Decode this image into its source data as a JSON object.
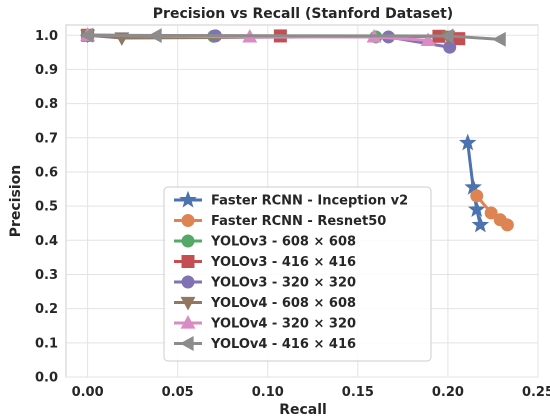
{
  "chart_data": {
    "type": "line",
    "title": "Precision vs Recall (Stanford Dataset)",
    "xlabel": "Recall",
    "ylabel": "Precision",
    "xlim": [
      -0.012,
      0.25
    ],
    "ylim": [
      0.0,
      1.03
    ],
    "xticks": [
      "0.00",
      "0.05",
      "0.10",
      "0.15",
      "0.20",
      "0.25"
    ],
    "yticks": [
      "0.0",
      "0.1",
      "0.2",
      "0.3",
      "0.4",
      "0.5",
      "0.6",
      "0.7",
      "0.8",
      "0.9",
      "1.0"
    ],
    "grid": true,
    "legend_position": "lower-center",
    "series": [
      {
        "name": "Faster RCNN - Inception v2",
        "color": "#4c72b0",
        "marker": "star",
        "x": [
          0.211,
          0.214,
          0.216,
          0.218
        ],
        "y": [
          0.685,
          0.555,
          0.49,
          0.445
        ]
      },
      {
        "name": "Faster RCNN - Resnet50",
        "color": "#dd8452",
        "marker": "circle",
        "x": [
          0.216,
          0.224,
          0.229,
          0.233
        ],
        "y": [
          0.53,
          0.48,
          0.46,
          0.445
        ]
      },
      {
        "name": "YOLOv3 - 608 × 608",
        "color": "#55a868",
        "marker": "circle",
        "x": [
          0.0,
          0.07,
          0.16
        ],
        "y": [
          1.0,
          0.997,
          0.995
        ]
      },
      {
        "name": "YOLOv3 - 416 × 416",
        "color": "#c44e52",
        "marker": "square",
        "x": [
          0.0,
          0.107,
          0.195,
          0.206
        ],
        "y": [
          1.0,
          0.998,
          0.997,
          0.99
        ]
      },
      {
        "name": "YOLOv3 - 320 × 320",
        "color": "#8172b3",
        "marker": "circle",
        "x": [
          0.0,
          0.071,
          0.167,
          0.201
        ],
        "y": [
          1.0,
          0.998,
          0.995,
          0.965
        ]
      },
      {
        "name": "YOLOv4 - 608 × 608",
        "color": "#937860",
        "marker": "triangle-down",
        "x": [
          0.0,
          0.019,
          0.2
        ],
        "y": [
          1.0,
          0.992,
          0.997
        ]
      },
      {
        "name": "YOLOv4 - 320 × 320",
        "color": "#da8bc3",
        "marker": "triangle-up",
        "x": [
          0.0,
          0.09,
          0.159,
          0.189
        ],
        "y": [
          1.0,
          0.995,
          0.995,
          0.985
        ]
      },
      {
        "name": "YOLOv4 - 416 × 416",
        "color": "#8c8c8c",
        "marker": "triangle-left",
        "x": [
          0.0,
          0.038,
          0.2,
          0.229
        ],
        "y": [
          1.0,
          0.999,
          0.998,
          0.988
        ]
      }
    ]
  }
}
